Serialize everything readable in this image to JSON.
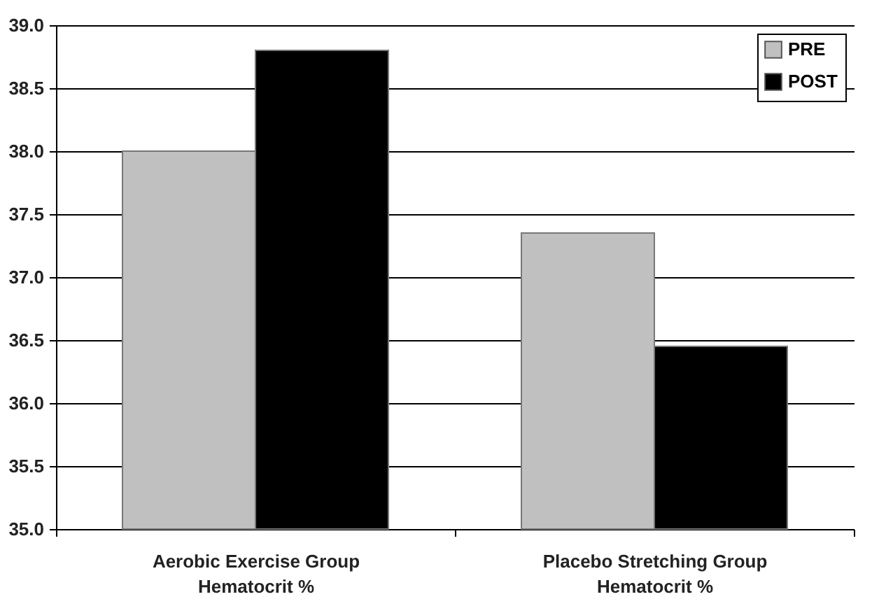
{
  "chart_data": {
    "type": "bar",
    "categories": [
      "Aerobic Exercise Group\nHematocrit %",
      "Placebo Stretching Group\nHematocrit %"
    ],
    "series": [
      {
        "name": "PRE",
        "color": "#c0c0c0",
        "values": [
          38.0,
          37.35
        ]
      },
      {
        "name": "POST",
        "color": "#000000",
        "values": [
          38.8,
          36.45
        ]
      }
    ],
    "ylim": [
      35.0,
      39.0
    ],
    "yticks": [
      {
        "value": 35,
        "label": "35.0"
      },
      {
        "value": 35.5,
        "label": "35.5"
      },
      {
        "value": 36,
        "label": "36.0"
      },
      {
        "value": 36.5,
        "label": "36.5"
      },
      {
        "value": 37,
        "label": "37.0"
      },
      {
        "value": 37.5,
        "label": "37.5"
      },
      {
        "value": 38,
        "label": "38.0"
      },
      {
        "value": 38.5,
        "label": "38.5"
      },
      {
        "value": 39,
        "label": "39.0"
      }
    ],
    "grid": "y",
    "legend": "top right"
  }
}
